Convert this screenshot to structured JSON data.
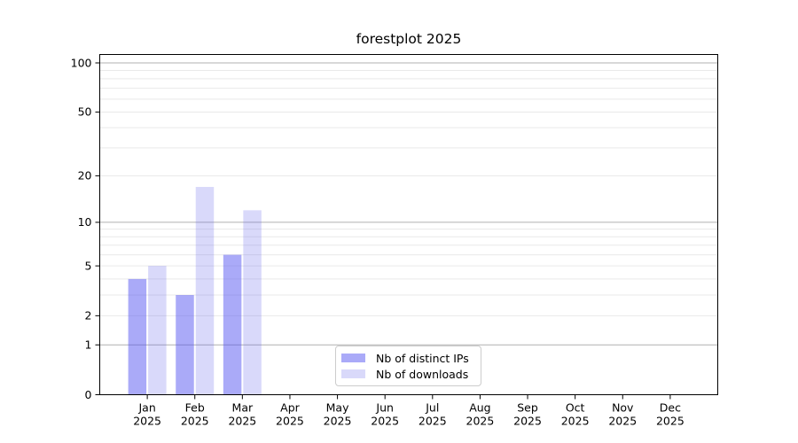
{
  "chart_data": {
    "type": "bar",
    "title": "forestplot 2025",
    "categories": [
      "Jan",
      "Feb",
      "Mar",
      "Apr",
      "May",
      "Jun",
      "Jul",
      "Aug",
      "Sep",
      "Oct",
      "Nov",
      "Dec"
    ],
    "category_year": "2025",
    "series": [
      {
        "name": "Nb of distinct IPs",
        "color": "#aaaaf8",
        "alpha": 0.5,
        "values": [
          4,
          3,
          6,
          0,
          0,
          0,
          0,
          0,
          0,
          0,
          0,
          0
        ]
      },
      {
        "name": "Nb of downloads",
        "color": "#d9d9fa",
        "alpha": 0.26,
        "values": [
          5,
          17,
          12,
          0,
          0,
          0,
          0,
          0,
          0,
          0,
          0,
          0
        ]
      }
    ],
    "y_scale": "log10(1+x)",
    "ylim": [
      0,
      113
    ],
    "y_tick_labels": [
      0,
      1,
      2,
      5,
      10,
      20,
      50,
      100
    ],
    "major_gridlines": [
      1,
      10,
      100
    ],
    "minor_gridlines": [
      2,
      3,
      4,
      5,
      6,
      7,
      8,
      9,
      20,
      30,
      40,
      50,
      60,
      70,
      80,
      90
    ],
    "legend_position": "lower center",
    "colors": {
      "major_grid": "#b0b0b0",
      "minor_grid": "#e9e9e9",
      "spine": "#000000",
      "text": "#000000",
      "legend_border": "#cccccc"
    }
  }
}
